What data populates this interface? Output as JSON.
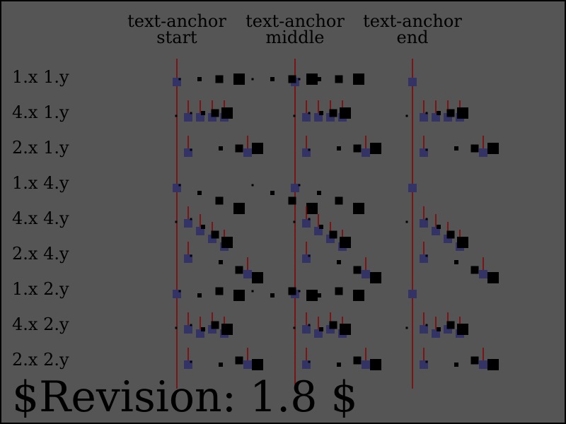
{
  "colors": {
    "background": "#555555",
    "border": "#000000",
    "guide_line": "#880000",
    "glyph_marker": "#333366",
    "glyph": "#000000",
    "text": "#000000"
  },
  "columns": [
    {
      "line1": "text-anchor",
      "line2": "start",
      "anchor": "start"
    },
    {
      "line1": "text-anchor",
      "line2": "middle",
      "anchor": "middle"
    },
    {
      "line1": "text-anchor",
      "line2": "end",
      "anchor": "end"
    }
  ],
  "rows": [
    {
      "label": "1.x 1.y"
    },
    {
      "label": "4.x 1.y"
    },
    {
      "label": "2.x 1.y"
    },
    {
      "label": "1.x 4.y"
    },
    {
      "label": "4.x 4.y"
    },
    {
      "label": "2.x 4.y"
    },
    {
      "label": "1.x 2.y"
    },
    {
      "label": "4.x 2.y"
    },
    {
      "label": "2.x 2.y"
    }
  ],
  "footer": {
    "revision": "$Revision: 1.8 $"
  }
}
